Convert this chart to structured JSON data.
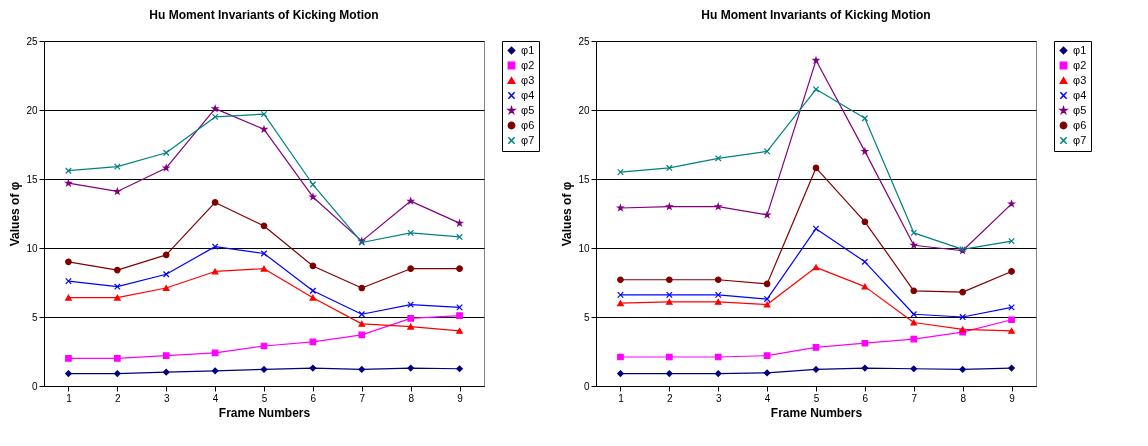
{
  "chart_data": [
    {
      "type": "line",
      "title": "Hu Moment Invariants of Kicking Motion",
      "xlabel": "Frame Numbers",
      "ylabel": "Values of φ",
      "categories": [
        "1",
        "2",
        "3",
        "4",
        "5",
        "6",
        "7",
        "8",
        "9"
      ],
      "ylim": [
        0,
        25
      ],
      "yticks": [
        0,
        5,
        10,
        15,
        20,
        25
      ],
      "grid": "y",
      "legend": "right",
      "series": [
        {
          "name": "φ1",
          "color": "#000080",
          "marker": "diamond",
          "values": [
            0.9,
            0.9,
            1.0,
            1.1,
            1.2,
            1.3,
            1.2,
            1.3,
            1.25
          ]
        },
        {
          "name": "φ2",
          "color": "#ff00ff",
          "marker": "square",
          "values": [
            2.0,
            2.0,
            2.2,
            2.4,
            2.9,
            3.2,
            3.7,
            4.9,
            5.1
          ]
        },
        {
          "name": "φ3",
          "color": "#ff0000",
          "marker": "triangle",
          "values": [
            6.4,
            6.4,
            7.1,
            8.3,
            8.5,
            6.4,
            4.5,
            4.3,
            4.0
          ]
        },
        {
          "name": "φ4",
          "color": "#0000ff",
          "marker": "cross",
          "values": [
            7.6,
            7.2,
            8.1,
            10.1,
            9.6,
            6.9,
            5.2,
            5.9,
            5.7
          ]
        },
        {
          "name": "φ5",
          "color": "#800080",
          "marker": "star",
          "values": [
            14.7,
            14.1,
            15.8,
            20.1,
            18.6,
            13.7,
            10.5,
            13.4,
            11.8
          ]
        },
        {
          "name": "φ6",
          "color": "#800000",
          "marker": "circle",
          "values": [
            9.0,
            8.4,
            9.5,
            13.3,
            11.6,
            8.7,
            7.1,
            8.5,
            8.5
          ]
        },
        {
          "name": "φ7",
          "color": "#008080",
          "marker": "cross",
          "values": [
            15.6,
            15.9,
            16.9,
            19.5,
            19.7,
            14.6,
            10.4,
            11.1,
            10.8
          ]
        }
      ]
    },
    {
      "type": "line",
      "title": "Hu Moment Invariants of Kicking Motion",
      "xlabel": "Frame Numbers",
      "ylabel": "Values of φ",
      "categories": [
        "1",
        "2",
        "3",
        "4",
        "5",
        "6",
        "7",
        "8",
        "9"
      ],
      "ylim": [
        0,
        25
      ],
      "yticks": [
        0,
        5,
        10,
        15,
        20,
        25
      ],
      "grid": "y",
      "legend": "right",
      "series": [
        {
          "name": "φ1",
          "color": "#000080",
          "marker": "diamond",
          "values": [
            0.9,
            0.9,
            0.9,
            0.95,
            1.2,
            1.3,
            1.25,
            1.2,
            1.3
          ]
        },
        {
          "name": "φ2",
          "color": "#ff00ff",
          "marker": "square",
          "values": [
            2.1,
            2.1,
            2.1,
            2.2,
            2.8,
            3.1,
            3.4,
            3.9,
            4.8
          ]
        },
        {
          "name": "φ3",
          "color": "#ff0000",
          "marker": "triangle",
          "values": [
            6.0,
            6.1,
            6.1,
            5.9,
            8.6,
            7.2,
            4.6,
            4.1,
            4.0
          ]
        },
        {
          "name": "φ4",
          "color": "#0000ff",
          "marker": "cross",
          "values": [
            6.6,
            6.6,
            6.6,
            6.3,
            11.4,
            9.0,
            5.2,
            5.0,
            5.7
          ]
        },
        {
          "name": "φ5",
          "color": "#800080",
          "marker": "star",
          "values": [
            12.9,
            13.0,
            13.0,
            12.4,
            23.6,
            17.0,
            10.2,
            9.8,
            13.2
          ]
        },
        {
          "name": "φ6",
          "color": "#800000",
          "marker": "circle",
          "values": [
            7.7,
            7.7,
            7.7,
            7.4,
            15.8,
            11.9,
            6.9,
            6.8,
            8.3
          ]
        },
        {
          "name": "φ7",
          "color": "#008080",
          "marker": "cross",
          "values": [
            15.5,
            15.8,
            16.5,
            17.0,
            21.5,
            19.4,
            11.1,
            9.9,
            10.5
          ]
        }
      ]
    }
  ]
}
